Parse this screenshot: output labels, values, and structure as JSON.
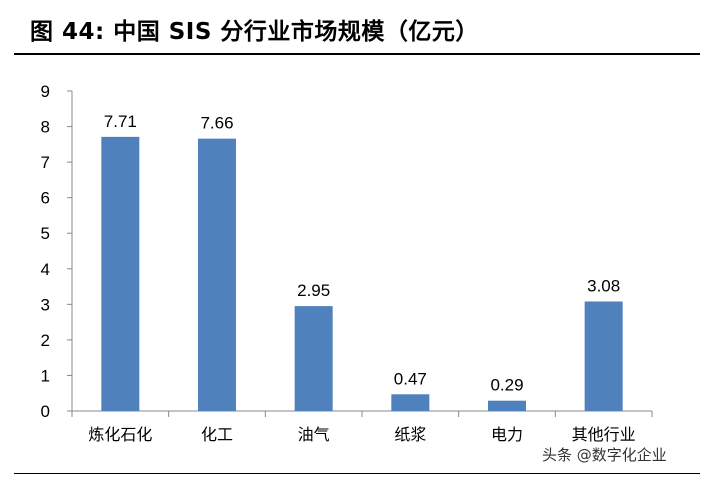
{
  "title": "图 44:  中国 SIS 分行业市场规模（亿元）",
  "colors": {
    "bar": "#4f81bd",
    "axis": "#888888"
  },
  "chart_data": {
    "type": "bar",
    "title": "",
    "xlabel": "",
    "ylabel": "",
    "categories": [
      "炼化石化",
      "化工",
      "油气",
      "纸浆",
      "电力",
      "其他行业"
    ],
    "values": [
      7.71,
      7.66,
      2.95,
      0.47,
      0.29,
      3.08
    ],
    "value_labels": [
      "7.71",
      "7.66",
      "2.95",
      "0.47",
      "0.29",
      "3.08"
    ],
    "ylim": [
      0,
      9
    ],
    "yticks": [
      0,
      1,
      2,
      3,
      4,
      5,
      6,
      7,
      8,
      9
    ],
    "grid": false,
    "legend": "none"
  },
  "watermark": "头条 @数字化企业"
}
